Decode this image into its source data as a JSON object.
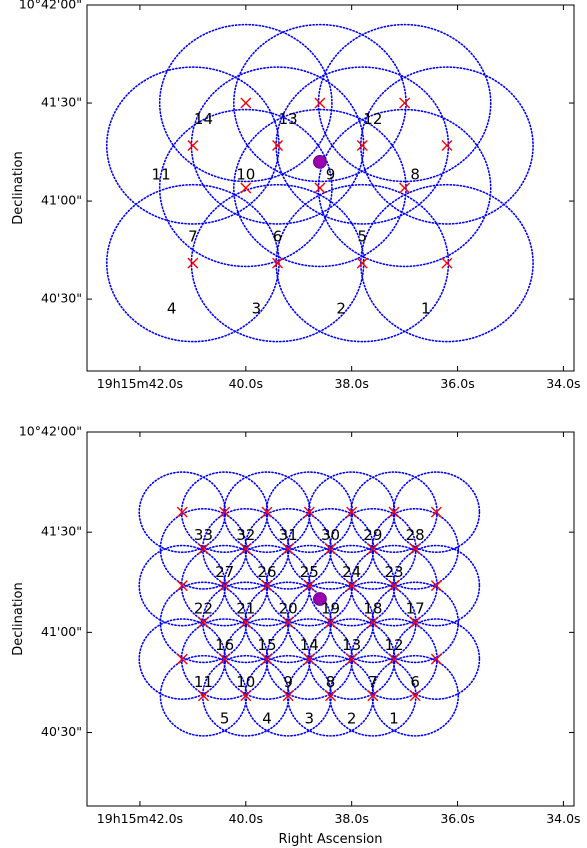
{
  "chart_data": [
    {
      "type": "scatter",
      "title": "",
      "xlabel": "",
      "ylabel": "Declination",
      "x_ticks": [
        "19h15m42.0s",
        "40.0s",
        "38.0s",
        "36.0s",
        "34.0s"
      ],
      "y_ticks": [
        "10°42'00\"",
        "41'30\"",
        "41'00\"",
        "40'30\""
      ],
      "x_unit": "RA seconds past 19h15m",
      "y_unit": "arcsec past 10°40'",
      "xlim": [
        43,
        33.8
      ],
      "ylim": [
        8,
        120
      ],
      "beam_radius_arcsec": 24,
      "pointings": [
        {
          "x": 38.6,
          "y": 90
        },
        {
          "x": 37.0,
          "y": 90
        },
        {
          "x": 40.0,
          "y": 90
        },
        {
          "x": 36.2,
          "y": 77
        },
        {
          "x": 37.8,
          "y": 77
        },
        {
          "x": 39.4,
          "y": 77
        },
        {
          "x": 41.0,
          "y": 77
        },
        {
          "x": 37.0,
          "y": 64
        },
        {
          "x": 38.6,
          "y": 64
        },
        {
          "x": 40.0,
          "y": 64
        },
        {
          "x": 36.2,
          "y": 41
        },
        {
          "x": 37.8,
          "y": 41
        },
        {
          "x": 39.4,
          "y": 41
        },
        {
          "x": 41.0,
          "y": 41
        }
      ],
      "labels": [
        {
          "text": "1",
          "x": 36.6,
          "y": 27
        },
        {
          "text": "2",
          "x": 38.2,
          "y": 27
        },
        {
          "text": "3",
          "x": 39.8,
          "y": 27
        },
        {
          "text": "4",
          "x": 41.4,
          "y": 27
        },
        {
          "text": "5",
          "x": 37.8,
          "y": 49
        },
        {
          "text": "6",
          "x": 39.4,
          "y": 49
        },
        {
          "text": "7",
          "x": 41.0,
          "y": 49
        },
        {
          "text": "8",
          "x": 36.8,
          "y": 68
        },
        {
          "text": "9",
          "x": 38.4,
          "y": 68
        },
        {
          "text": "10",
          "x": 40.0,
          "y": 68
        },
        {
          "text": "11",
          "x": 41.6,
          "y": 68
        },
        {
          "text": "12",
          "x": 37.6,
          "y": 85
        },
        {
          "text": "13",
          "x": 39.2,
          "y": 85
        },
        {
          "text": "14",
          "x": 40.8,
          "y": 85
        }
      ],
      "target": {
        "x": 38.6,
        "y": 72
      },
      "colors": {
        "beam": "#0000ff",
        "pointing": "#ff0000",
        "target": "#9b00b0",
        "label": "#000000"
      }
    },
    {
      "type": "scatter",
      "title": "",
      "xlabel": "Right Ascension",
      "ylabel": "Declination",
      "x_ticks": [
        "19h15m42.0s",
        "40.0s",
        "38.0s",
        "36.0s",
        "34.0s"
      ],
      "y_ticks": [
        "10°42'00\"",
        "41'30\"",
        "41'00\"",
        "40'30\""
      ],
      "x_unit": "RA seconds past 19h15m",
      "y_unit": "arcsec past 10°40'",
      "xlim": [
        43,
        33.8
      ],
      "ylim": [
        8,
        120
      ],
      "beam_radius_arcsec": 12,
      "pointings": [
        {
          "x": 36.4,
          "y": 96
        },
        {
          "x": 37.2,
          "y": 96
        },
        {
          "x": 38.0,
          "y": 96
        },
        {
          "x": 38.8,
          "y": 96
        },
        {
          "x": 39.6,
          "y": 96
        },
        {
          "x": 40.4,
          "y": 96
        },
        {
          "x": 41.2,
          "y": 96
        },
        {
          "x": 36.8,
          "y": 85
        },
        {
          "x": 37.6,
          "y": 85
        },
        {
          "x": 38.4,
          "y": 85
        },
        {
          "x": 39.2,
          "y": 85
        },
        {
          "x": 40.0,
          "y": 85
        },
        {
          "x": 40.8,
          "y": 85
        },
        {
          "x": 36.4,
          "y": 74
        },
        {
          "x": 37.2,
          "y": 74
        },
        {
          "x": 38.0,
          "y": 74
        },
        {
          "x": 38.8,
          "y": 74
        },
        {
          "x": 39.6,
          "y": 74
        },
        {
          "x": 40.4,
          "y": 74
        },
        {
          "x": 41.2,
          "y": 74
        },
        {
          "x": 36.8,
          "y": 63
        },
        {
          "x": 37.6,
          "y": 63
        },
        {
          "x": 38.4,
          "y": 63
        },
        {
          "x": 39.2,
          "y": 63
        },
        {
          "x": 40.0,
          "y": 63
        },
        {
          "x": 40.8,
          "y": 63
        },
        {
          "x": 36.4,
          "y": 52
        },
        {
          "x": 37.2,
          "y": 52
        },
        {
          "x": 38.0,
          "y": 52
        },
        {
          "x": 38.8,
          "y": 52
        },
        {
          "x": 39.6,
          "y": 52
        },
        {
          "x": 40.4,
          "y": 52
        },
        {
          "x": 41.2,
          "y": 52
        },
        {
          "x": 36.8,
          "y": 41
        },
        {
          "x": 37.6,
          "y": 41
        },
        {
          "x": 38.4,
          "y": 41
        },
        {
          "x": 39.2,
          "y": 41
        },
        {
          "x": 40.0,
          "y": 41
        },
        {
          "x": 40.8,
          "y": 41
        }
      ],
      "labels": [
        {
          "text": "1",
          "x": 37.2,
          "y": 34
        },
        {
          "text": "2",
          "x": 38.0,
          "y": 34
        },
        {
          "text": "3",
          "x": 38.8,
          "y": 34
        },
        {
          "text": "4",
          "x": 39.6,
          "y": 34
        },
        {
          "text": "5",
          "x": 40.4,
          "y": 34
        },
        {
          "text": "6",
          "x": 36.8,
          "y": 45
        },
        {
          "text": "7",
          "x": 37.6,
          "y": 45
        },
        {
          "text": "8",
          "x": 38.4,
          "y": 45
        },
        {
          "text": "9",
          "x": 39.2,
          "y": 45
        },
        {
          "text": "10",
          "x": 40.0,
          "y": 45
        },
        {
          "text": "11",
          "x": 40.8,
          "y": 45
        },
        {
          "text": "12",
          "x": 37.2,
          "y": 56
        },
        {
          "text": "13",
          "x": 38.0,
          "y": 56
        },
        {
          "text": "14",
          "x": 38.8,
          "y": 56
        },
        {
          "text": "15",
          "x": 39.6,
          "y": 56
        },
        {
          "text": "16",
          "x": 40.4,
          "y": 56
        },
        {
          "text": "17",
          "x": 36.8,
          "y": 67
        },
        {
          "text": "18",
          "x": 37.6,
          "y": 67
        },
        {
          "text": "19",
          "x": 38.4,
          "y": 67
        },
        {
          "text": "20",
          "x": 39.2,
          "y": 67
        },
        {
          "text": "21",
          "x": 40.0,
          "y": 67
        },
        {
          "text": "22",
          "x": 40.8,
          "y": 67
        },
        {
          "text": "23",
          "x": 37.2,
          "y": 78
        },
        {
          "text": "24",
          "x": 38.0,
          "y": 78
        },
        {
          "text": "25",
          "x": 38.8,
          "y": 78
        },
        {
          "text": "26",
          "x": 39.6,
          "y": 78
        },
        {
          "text": "27",
          "x": 40.4,
          "y": 78
        },
        {
          "text": "28",
          "x": 36.8,
          "y": 89
        },
        {
          "text": "29",
          "x": 37.6,
          "y": 89
        },
        {
          "text": "30",
          "x": 38.4,
          "y": 89
        },
        {
          "text": "31",
          "x": 39.2,
          "y": 89
        },
        {
          "text": "32",
          "x": 40.0,
          "y": 89
        },
        {
          "text": "33",
          "x": 40.8,
          "y": 89
        }
      ],
      "target": {
        "x": 38.6,
        "y": 70
      },
      "colors": {
        "beam": "#0000ff",
        "pointing": "#ff0000",
        "target": "#9b00b0",
        "label": "#000000"
      }
    }
  ]
}
